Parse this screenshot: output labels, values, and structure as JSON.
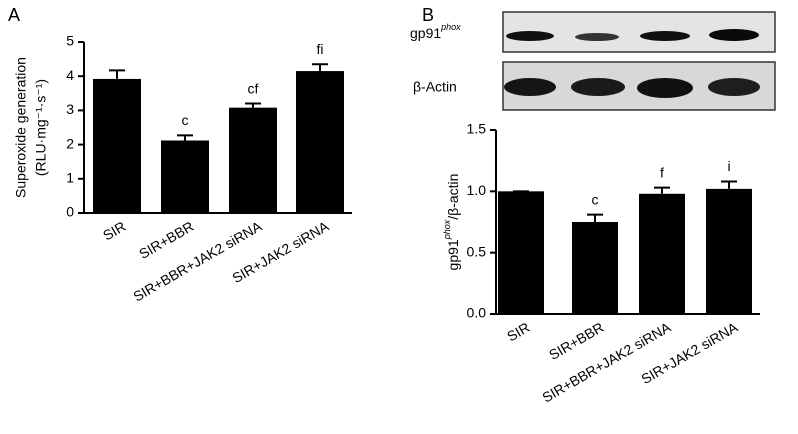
{
  "panel_labels": [
    "A",
    "B"
  ],
  "blot_labels": [
    {
      "text": "gp91",
      "superscript": "phox"
    },
    {
      "text": "β-Actin"
    }
  ],
  "chart_data": [
    {
      "type": "bar",
      "y_label": [
        "Superoxide generation",
        "(RLU·mg⁻¹·s⁻¹)"
      ],
      "categories": [
        "SIR",
        "SIR+BBR",
        "SIR+BBR+JAK2 siRNA",
        "SIR+JAK2 siRNA"
      ],
      "values": [
        3.92,
        2.12,
        3.08,
        4.15
      ],
      "errors": [
        0.25,
        0.15,
        0.12,
        0.2
      ],
      "annotations": [
        null,
        "c",
        "cf",
        "fi"
      ],
      "color": "#000000",
      "ylim": [
        0,
        5
      ],
      "yticks": [
        0,
        1,
        2,
        3,
        4,
        5
      ]
    },
    {
      "type": "bar",
      "y_label": {
        "text": "gp91",
        "superscript": "phox",
        "suffix": "/β-actin"
      },
      "categories": [
        "SIR",
        "SIR+BBR",
        "SIR+BBR+JAK2 siRNA",
        "SIR+JAK2 siRNA"
      ],
      "values": [
        1.0,
        0.75,
        0.98,
        1.02
      ],
      "errors": [
        0,
        0.06,
        0.05,
        0.06
      ],
      "annotations": [
        null,
        "c",
        "f",
        "i"
      ],
      "color": "#000000",
      "ylim": [
        0,
        1.5
      ],
      "yticks": [
        {
          "value": 0,
          "label": "0.0"
        },
        0.5,
        {
          "value": 1,
          "label": "1.0"
        },
        1.5
      ]
    }
  ]
}
